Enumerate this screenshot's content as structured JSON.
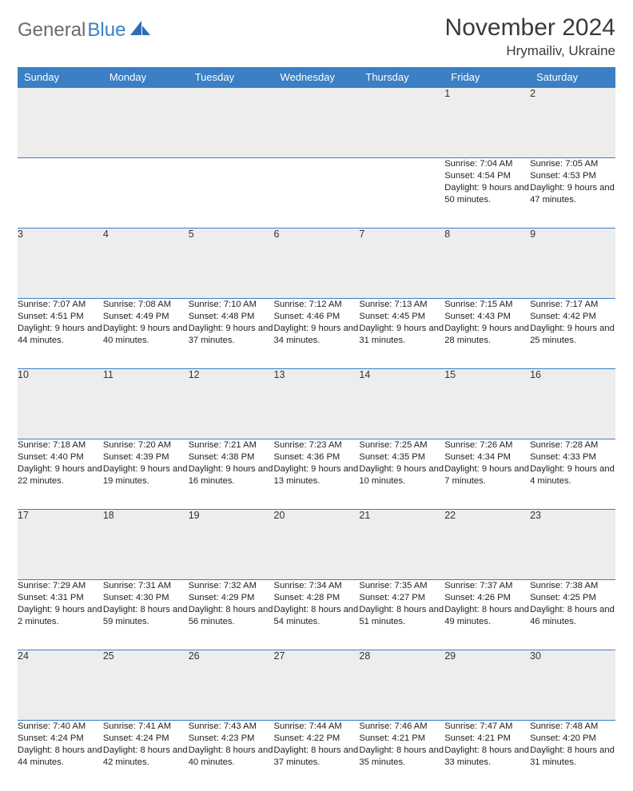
{
  "brand": {
    "part1": "General",
    "part2": "Blue"
  },
  "title": "November 2024",
  "location": "Hrymailiv, Ukraine",
  "colors": {
    "header_bg": "#3b7fc4",
    "header_fg": "#ffffff",
    "daynum_bg": "#ededed",
    "border": "#3b7fc4",
    "text": "#222222",
    "brand_gray": "#6b6b6b",
    "brand_blue": "#3b7fc4",
    "page_bg": "#ffffff"
  },
  "weekdays": [
    "Sunday",
    "Monday",
    "Tuesday",
    "Wednesday",
    "Thursday",
    "Friday",
    "Saturday"
  ],
  "weeks": [
    [
      null,
      null,
      null,
      null,
      null,
      {
        "n": "1",
        "sr": "7:04 AM",
        "ss": "4:54 PM",
        "dl": "9 hours and 50 minutes."
      },
      {
        "n": "2",
        "sr": "7:05 AM",
        "ss": "4:53 PM",
        "dl": "9 hours and 47 minutes."
      }
    ],
    [
      {
        "n": "3",
        "sr": "7:07 AM",
        "ss": "4:51 PM",
        "dl": "9 hours and 44 minutes."
      },
      {
        "n": "4",
        "sr": "7:08 AM",
        "ss": "4:49 PM",
        "dl": "9 hours and 40 minutes."
      },
      {
        "n": "5",
        "sr": "7:10 AM",
        "ss": "4:48 PM",
        "dl": "9 hours and 37 minutes."
      },
      {
        "n": "6",
        "sr": "7:12 AM",
        "ss": "4:46 PM",
        "dl": "9 hours and 34 minutes."
      },
      {
        "n": "7",
        "sr": "7:13 AM",
        "ss": "4:45 PM",
        "dl": "9 hours and 31 minutes."
      },
      {
        "n": "8",
        "sr": "7:15 AM",
        "ss": "4:43 PM",
        "dl": "9 hours and 28 minutes."
      },
      {
        "n": "9",
        "sr": "7:17 AM",
        "ss": "4:42 PM",
        "dl": "9 hours and 25 minutes."
      }
    ],
    [
      {
        "n": "10",
        "sr": "7:18 AM",
        "ss": "4:40 PM",
        "dl": "9 hours and 22 minutes."
      },
      {
        "n": "11",
        "sr": "7:20 AM",
        "ss": "4:39 PM",
        "dl": "9 hours and 19 minutes."
      },
      {
        "n": "12",
        "sr": "7:21 AM",
        "ss": "4:38 PM",
        "dl": "9 hours and 16 minutes."
      },
      {
        "n": "13",
        "sr": "7:23 AM",
        "ss": "4:36 PM",
        "dl": "9 hours and 13 minutes."
      },
      {
        "n": "14",
        "sr": "7:25 AM",
        "ss": "4:35 PM",
        "dl": "9 hours and 10 minutes."
      },
      {
        "n": "15",
        "sr": "7:26 AM",
        "ss": "4:34 PM",
        "dl": "9 hours and 7 minutes."
      },
      {
        "n": "16",
        "sr": "7:28 AM",
        "ss": "4:33 PM",
        "dl": "9 hours and 4 minutes."
      }
    ],
    [
      {
        "n": "17",
        "sr": "7:29 AM",
        "ss": "4:31 PM",
        "dl": "9 hours and 2 minutes."
      },
      {
        "n": "18",
        "sr": "7:31 AM",
        "ss": "4:30 PM",
        "dl": "8 hours and 59 minutes."
      },
      {
        "n": "19",
        "sr": "7:32 AM",
        "ss": "4:29 PM",
        "dl": "8 hours and 56 minutes."
      },
      {
        "n": "20",
        "sr": "7:34 AM",
        "ss": "4:28 PM",
        "dl": "8 hours and 54 minutes."
      },
      {
        "n": "21",
        "sr": "7:35 AM",
        "ss": "4:27 PM",
        "dl": "8 hours and 51 minutes."
      },
      {
        "n": "22",
        "sr": "7:37 AM",
        "ss": "4:26 PM",
        "dl": "8 hours and 49 minutes."
      },
      {
        "n": "23",
        "sr": "7:38 AM",
        "ss": "4:25 PM",
        "dl": "8 hours and 46 minutes."
      }
    ],
    [
      {
        "n": "24",
        "sr": "7:40 AM",
        "ss": "4:24 PM",
        "dl": "8 hours and 44 minutes."
      },
      {
        "n": "25",
        "sr": "7:41 AM",
        "ss": "4:24 PM",
        "dl": "8 hours and 42 minutes."
      },
      {
        "n": "26",
        "sr": "7:43 AM",
        "ss": "4:23 PM",
        "dl": "8 hours and 40 minutes."
      },
      {
        "n": "27",
        "sr": "7:44 AM",
        "ss": "4:22 PM",
        "dl": "8 hours and 37 minutes."
      },
      {
        "n": "28",
        "sr": "7:46 AM",
        "ss": "4:21 PM",
        "dl": "8 hours and 35 minutes."
      },
      {
        "n": "29",
        "sr": "7:47 AM",
        "ss": "4:21 PM",
        "dl": "8 hours and 33 minutes."
      },
      {
        "n": "30",
        "sr": "7:48 AM",
        "ss": "4:20 PM",
        "dl": "8 hours and 31 minutes."
      }
    ]
  ],
  "labels": {
    "sunrise": "Sunrise: ",
    "sunset": "Sunset: ",
    "daylight": "Daylight: "
  }
}
